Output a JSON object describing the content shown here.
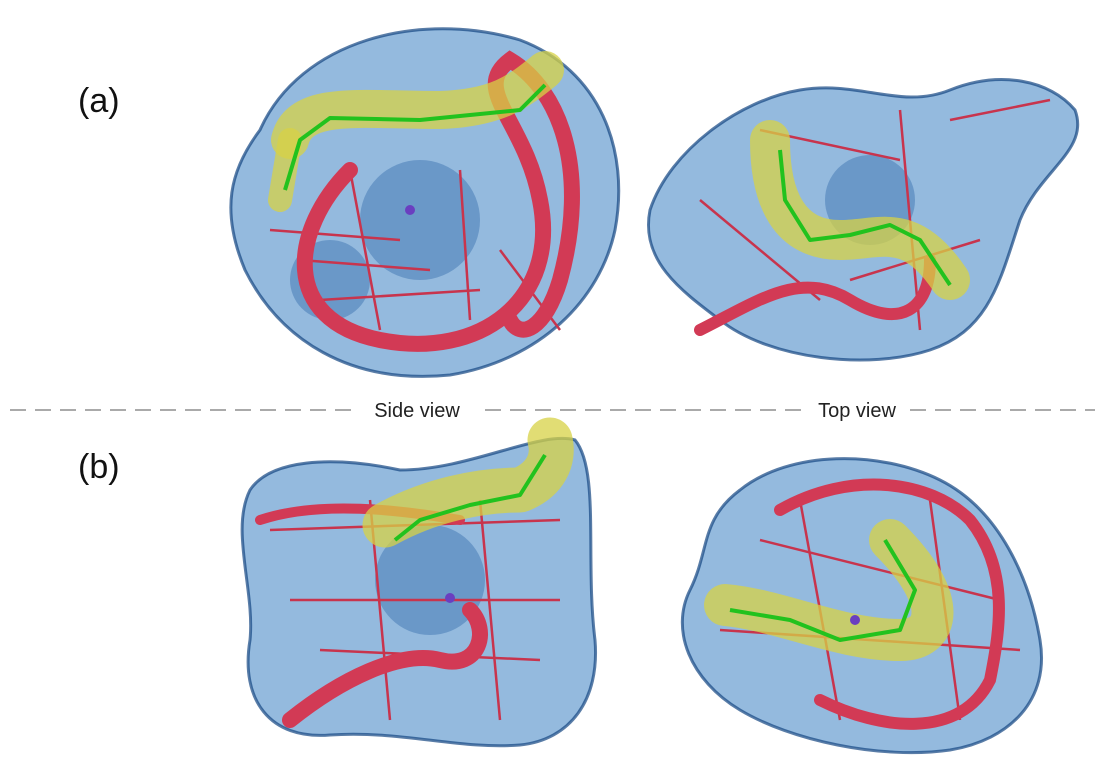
{
  "panels": [
    {
      "label": "(a)"
    },
    {
      "label": "(b)"
    }
  ],
  "views": [
    "Side view",
    "Top view"
  ]
}
